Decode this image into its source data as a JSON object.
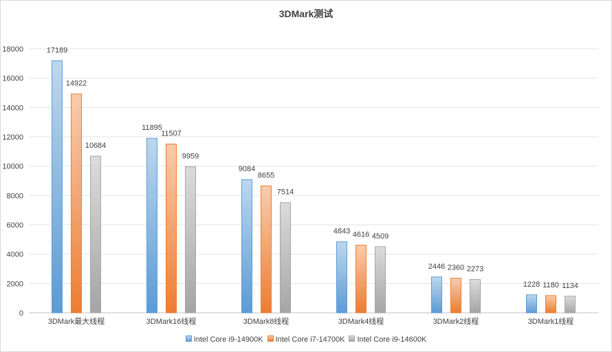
{
  "chart_data": {
    "type": "bar",
    "title": "3DMark测试",
    "categories": [
      "3DMark最大线程",
      "3DMark16线程",
      "3DMark8线程",
      "3DMark4线程",
      "3DMark2线程",
      "3DMark1线程"
    ],
    "series": [
      {
        "name": "Intel Core i9-14900K",
        "color": "#5b9bd5",
        "values": [
          17189,
          11895,
          9084,
          4843,
          2446,
          1228
        ]
      },
      {
        "name": "Intel Core i7-14700K",
        "color": "#ed7d31",
        "values": [
          14922,
          11507,
          8655,
          4616,
          2360,
          1180
        ]
      },
      {
        "name": "Intel Core i9-14600K",
        "color": "#a5a5a5",
        "values": [
          10684,
          9959,
          7514,
          4509,
          2273,
          1134
        ]
      }
    ],
    "yticks": [
      0,
      2000,
      4000,
      6000,
      8000,
      10000,
      12000,
      14000,
      16000,
      18000
    ],
    "ylim": [
      0,
      18000
    ],
    "grid": true,
    "legend_position": "bottom"
  }
}
